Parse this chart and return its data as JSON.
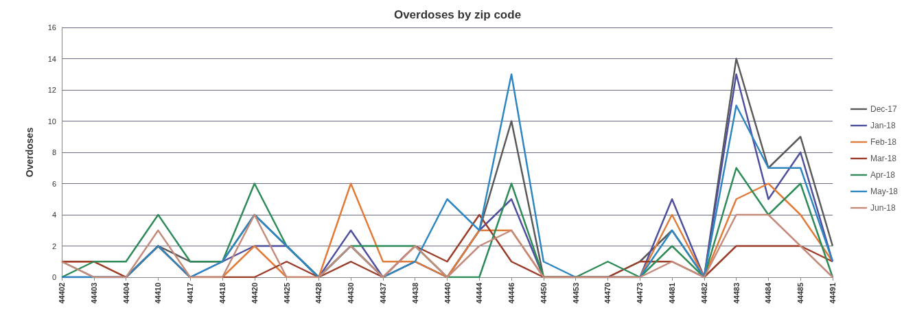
{
  "chart_data": {
    "type": "line",
    "title": "Overdoses by zip code",
    "ylabel": "Overdoses",
    "categories": [
      "44402",
      "44403",
      "44404",
      "44410",
      "44417",
      "44418",
      "44420",
      "44425",
      "44428",
      "44430",
      "44437",
      "44438",
      "44440",
      "44444",
      "44446",
      "44450",
      "44453",
      "44470",
      "44473",
      "44481",
      "44482",
      "44483",
      "44484",
      "44485",
      "44491"
    ],
    "series": [
      {
        "name": "Dec-17",
        "color": "#595959",
        "values": [
          1,
          0,
          0,
          2,
          1,
          1,
          4,
          2,
          0,
          2,
          0,
          1,
          0,
          3,
          10,
          0,
          0,
          0,
          1,
          3,
          0,
          14,
          7,
          9,
          2
        ]
      },
      {
        "name": "Jan-18",
        "color": "#4f4f9f",
        "values": [
          0,
          0,
          0,
          2,
          0,
          1,
          2,
          2,
          0,
          3,
          0,
          1,
          0,
          3,
          5,
          0,
          0,
          0,
          0,
          5,
          0,
          13,
          5,
          8,
          1
        ]
      },
      {
        "name": "Feb-18",
        "color": "#e07b39",
        "values": [
          1,
          1,
          0,
          2,
          0,
          0,
          2,
          0,
          0,
          6,
          1,
          1,
          0,
          3,
          3,
          0,
          0,
          0,
          0,
          4,
          0,
          5,
          6,
          4,
          1
        ]
      },
      {
        "name": "Mar-18",
        "color": "#9c3d2a",
        "values": [
          1,
          1,
          0,
          2,
          0,
          0,
          0,
          1,
          0,
          1,
          0,
          2,
          1,
          4,
          1,
          0,
          0,
          0,
          1,
          1,
          0,
          2,
          2,
          2,
          1
        ]
      },
      {
        "name": "Apr-18",
        "color": "#2e8b57",
        "values": [
          0,
          1,
          1,
          4,
          1,
          1,
          6,
          2,
          0,
          2,
          2,
          2,
          0,
          0,
          6,
          0,
          0,
          1,
          0,
          2,
          0,
          7,
          4,
          6,
          0
        ]
      },
      {
        "name": "May-18",
        "color": "#2e86c1",
        "values": [
          0,
          0,
          0,
          2,
          0,
          1,
          4,
          2,
          0,
          2,
          0,
          1,
          5,
          3,
          13,
          1,
          0,
          0,
          0,
          3,
          0,
          11,
          7,
          7,
          1
        ]
      },
      {
        "name": "Jun-18",
        "color": "#c48a7a",
        "values": [
          1,
          0,
          0,
          3,
          0,
          0,
          4,
          0,
          0,
          2,
          0,
          2,
          0,
          2,
          3,
          0,
          0,
          0,
          0,
          1,
          0,
          4,
          4,
          2,
          0
        ]
      }
    ],
    "ylim": [
      0,
      16
    ],
    "yticks": [
      0,
      2,
      4,
      6,
      8,
      10,
      12,
      14,
      16
    ],
    "grid": "y",
    "legend": "right",
    "marker": "none",
    "line_style": "solid"
  }
}
